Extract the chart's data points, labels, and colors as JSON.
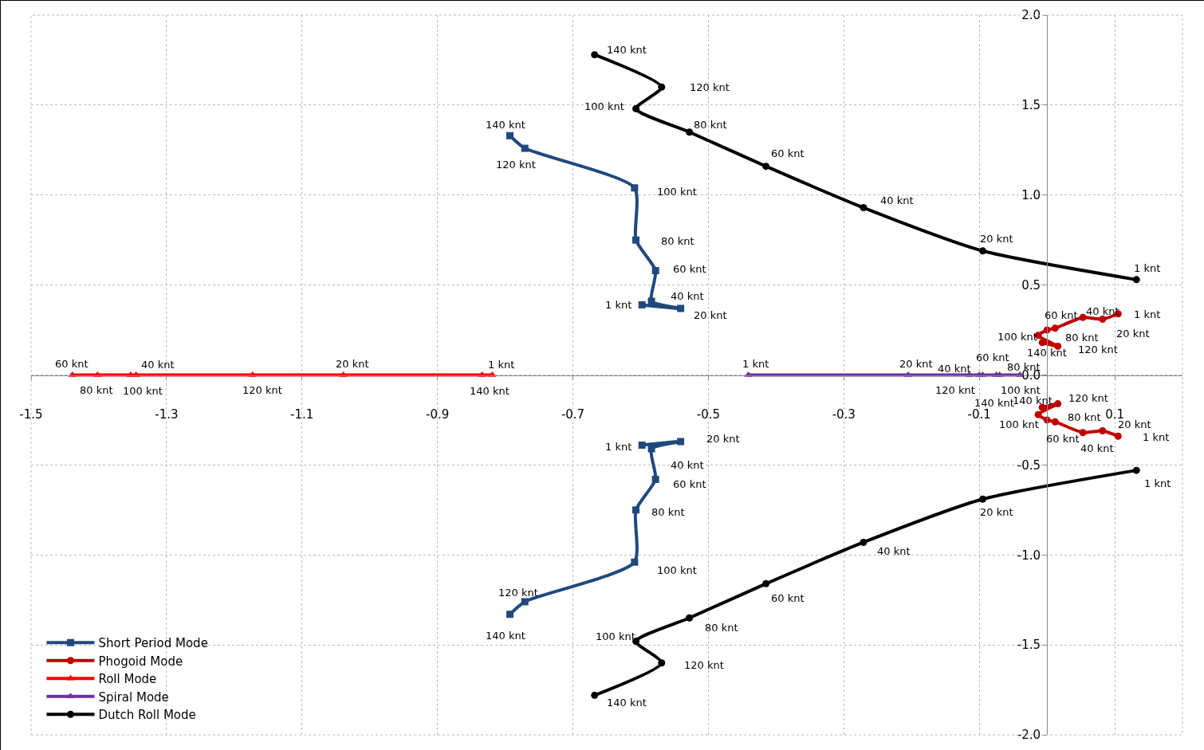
{
  "chart_data": {
    "type": "line",
    "xlim": [
      -1.5,
      0.2
    ],
    "ylim": [
      -2,
      2
    ],
    "xticks": [
      -1.5,
      -1.3,
      -1.1,
      -0.9,
      -0.7,
      -0.5,
      -0.3,
      -0.1,
      0.1
    ],
    "yticks": [
      {
        "value": -2,
        "label": "-2.0"
      },
      -1.5,
      {
        "value": -1,
        "label": "-1.0"
      },
      -0.5,
      {
        "value": 0,
        "label": "0.0"
      },
      0.5,
      {
        "value": 1,
        "label": "1.0"
      },
      1.5,
      {
        "value": 2,
        "label": "2.0"
      }
    ],
    "grid": true,
    "legend": "bottom left",
    "series": [
      {
        "name": "Short Period Mode",
        "color": "#1f497d",
        "marker": "square",
        "x": [
          -0.598,
          -0.541,
          -0.584,
          -0.578,
          -0.607,
          -0.609,
          -0.771,
          -0.793
        ],
        "values": [
          0.39,
          0.37,
          0.41,
          0.58,
          0.75,
          1.04,
          1.26,
          1.33
        ]
      },
      {
        "color": "#1f497d",
        "marker": "square",
        "x": [
          -0.598,
          -0.541,
          -0.584,
          -0.578,
          -0.607,
          -0.609,
          -0.771,
          -0.793
        ],
        "values": [
          -0.39,
          -0.37,
          -0.41,
          -0.58,
          -0.75,
          -1.04,
          -1.26,
          -1.33
        ]
      },
      {
        "name": "Phogoid Mode",
        "color": "#c00000",
        "marker": "circle",
        "x": [
          0.105,
          0.082,
          0.053,
          0.012,
          0,
          -0.013,
          0.016,
          -0.007
        ],
        "values": [
          0.34,
          0.31,
          0.32,
          0.26,
          0.25,
          0.22,
          0.16,
          0.18
        ]
      },
      {
        "color": "#c00000",
        "marker": "circle",
        "x": [
          0.105,
          0.082,
          0.053,
          0.012,
          0,
          -0.013,
          0.016,
          -0.007
        ],
        "values": [
          -0.34,
          -0.31,
          -0.32,
          -0.26,
          -0.25,
          -0.22,
          -0.16,
          -0.18
        ]
      },
      {
        "name": "Roll Mode",
        "color": "#ff0000",
        "marker": "triangle",
        "x": [
          -0.819,
          -1.039,
          -1.345,
          -1.439,
          -1.402,
          -1.353,
          -1.173,
          -0.834
        ],
        "values": [
          0,
          0,
          0,
          0,
          0,
          0,
          0,
          0
        ]
      },
      {
        "name": "Spiral Mode",
        "color": "#7030a0",
        "marker": "triangle",
        "x": [
          -0.441,
          -0.205,
          -0.115,
          -0.095,
          -0.04,
          -0.07,
          -0.1,
          -0.075
        ],
        "values": [
          0,
          0,
          0,
          0,
          0,
          0,
          0,
          0
        ]
      },
      {
        "name": "Dutch Roll Mode",
        "color": "#000000",
        "marker": "circle",
        "x": [
          0.132,
          -0.095,
          -0.271,
          -0.415,
          -0.528,
          -0.607,
          -0.569,
          -0.668
        ],
        "values": [
          0.53,
          0.69,
          0.93,
          1.16,
          1.35,
          1.48,
          1.6,
          1.78
        ]
      },
      {
        "color": "#000000",
        "marker": "circle",
        "x": [
          0.132,
          -0.095,
          -0.271,
          -0.415,
          -0.528,
          -0.607,
          -0.569,
          -0.668
        ],
        "values": [
          -0.53,
          -0.69,
          -0.93,
          -1.16,
          -1.35,
          -1.48,
          -1.6,
          -1.78
        ]
      }
    ],
    "annotations": [
      {
        "text": "1 knt",
        "x": -0.598,
        "y": 0.39
      },
      {
        "text": "20 knt",
        "x": -0.541,
        "y": 0.37
      },
      {
        "text": "40 knt",
        "x": -0.584,
        "y": 0.41
      },
      {
        "text": "60 knt",
        "x": -0.578,
        "y": 0.58
      },
      {
        "text": "80 knt",
        "x": -0.607,
        "y": 0.75
      },
      {
        "text": "100 knt",
        "x": -0.609,
        "y": 1.04
      },
      {
        "text": "120 knt",
        "x": -0.771,
        "y": 1.26
      },
      {
        "text": "140 knt",
        "x": -0.793,
        "y": 1.33
      },
      {
        "text": "1 knt",
        "x": -0.598,
        "y": -0.39
      },
      {
        "text": "20 knt",
        "x": -0.541,
        "y": -0.37
      },
      {
        "text": "40 knt",
        "x": -0.584,
        "y": -0.41
      },
      {
        "text": "60 knt",
        "x": -0.578,
        "y": -0.58
      },
      {
        "text": "80 knt",
        "x": -0.607,
        "y": -0.75
      },
      {
        "text": "100 knt",
        "x": -0.609,
        "y": -1.04
      },
      {
        "text": "120 knt",
        "x": -0.771,
        "y": -1.26
      },
      {
        "text": "140 knt",
        "x": -0.793,
        "y": -1.33
      },
      {
        "text": "1 knt",
        "x": 0.105,
        "y": 0.34
      },
      {
        "text": "20 knt",
        "x": 0.082,
        "y": 0.31
      },
      {
        "text": "40 knt",
        "x": 0.053,
        "y": 0.32
      },
      {
        "text": "60 knt",
        "x": 0.012,
        "y": 0.26
      },
      {
        "text": "80 knt",
        "x": 0,
        "y": 0.25
      },
      {
        "text": "100 knt",
        "x": -0.013,
        "y": 0.22
      },
      {
        "text": "120 knt",
        "x": 0.016,
        "y": 0.16
      },
      {
        "text": "140 knt",
        "x": -0.007,
        "y": 0.18
      },
      {
        "text": "1 knt",
        "x": 0.105,
        "y": -0.34
      },
      {
        "text": "20 knt",
        "x": 0.082,
        "y": -0.31
      },
      {
        "text": "40 knt",
        "x": 0.053,
        "y": -0.32
      },
      {
        "text": "60 knt",
        "x": 0.012,
        "y": -0.26
      },
      {
        "text": "80 knt",
        "x": 0,
        "y": -0.25
      },
      {
        "text": "100 knt",
        "x": -0.013,
        "y": -0.22
      },
      {
        "text": "120 knt",
        "x": 0.016,
        "y": -0.16
      },
      {
        "text": "140 knt",
        "x": -0.007,
        "y": -0.18
      },
      {
        "text": "1 knt",
        "x": -0.819,
        "y": 0
      },
      {
        "text": "20 knt",
        "x": -1.039,
        "y": 0
      },
      {
        "text": "40 knt",
        "x": -1.345,
        "y": 0
      },
      {
        "text": "60 knt",
        "x": -1.439,
        "y": 0
      },
      {
        "text": "80 knt",
        "x": -1.402,
        "y": 0
      },
      {
        "text": "100 knt",
        "x": -1.353,
        "y": 0
      },
      {
        "text": "120 knt",
        "x": -1.173,
        "y": 0
      },
      {
        "text": "140 knt",
        "x": -0.834,
        "y": 0
      },
      {
        "text": "1 knt",
        "x": -0.441,
        "y": 0
      },
      {
        "text": "20 knt",
        "x": -0.205,
        "y": 0
      },
      {
        "text": "40 knt",
        "x": -0.115,
        "y": 0
      },
      {
        "text": "60 knt",
        "x": -0.095,
        "y": 0
      },
      {
        "text": "80 knt",
        "x": -0.04,
        "y": 0
      },
      {
        "text": "100 knt",
        "x": -0.07,
        "y": 0
      },
      {
        "text": "120 knt",
        "x": -0.1,
        "y": 0
      },
      {
        "text": "140 knt",
        "x": -0.075,
        "y": 0
      },
      {
        "text": "1 knt",
        "x": 0.132,
        "y": 0.53
      },
      {
        "text": "20 knt",
        "x": -0.095,
        "y": 0.69
      },
      {
        "text": "40 knt",
        "x": -0.271,
        "y": 0.93
      },
      {
        "text": "60 knt",
        "x": -0.415,
        "y": 1.16
      },
      {
        "text": "80 knt",
        "x": -0.528,
        "y": 1.35
      },
      {
        "text": "100 knt",
        "x": -0.607,
        "y": 1.48
      },
      {
        "text": "120 knt",
        "x": -0.569,
        "y": 1.6
      },
      {
        "text": "140 knt",
        "x": -0.668,
        "y": 1.78
      },
      {
        "text": "1 knt",
        "x": 0.132,
        "y": -0.53
      },
      {
        "text": "20 knt",
        "x": -0.095,
        "y": -0.69
      },
      {
        "text": "40 knt",
        "x": -0.271,
        "y": -0.93
      },
      {
        "text": "60 knt",
        "x": -0.415,
        "y": -1.16
      },
      {
        "text": "80 knt",
        "x": -0.528,
        "y": -1.35
      },
      {
        "text": "100 knt",
        "x": -0.607,
        "y": -1.48
      },
      {
        "text": "120 knt",
        "x": -0.569,
        "y": -1.6
      },
      {
        "text": "140 knt",
        "x": -0.668,
        "y": -1.78
      }
    ]
  }
}
